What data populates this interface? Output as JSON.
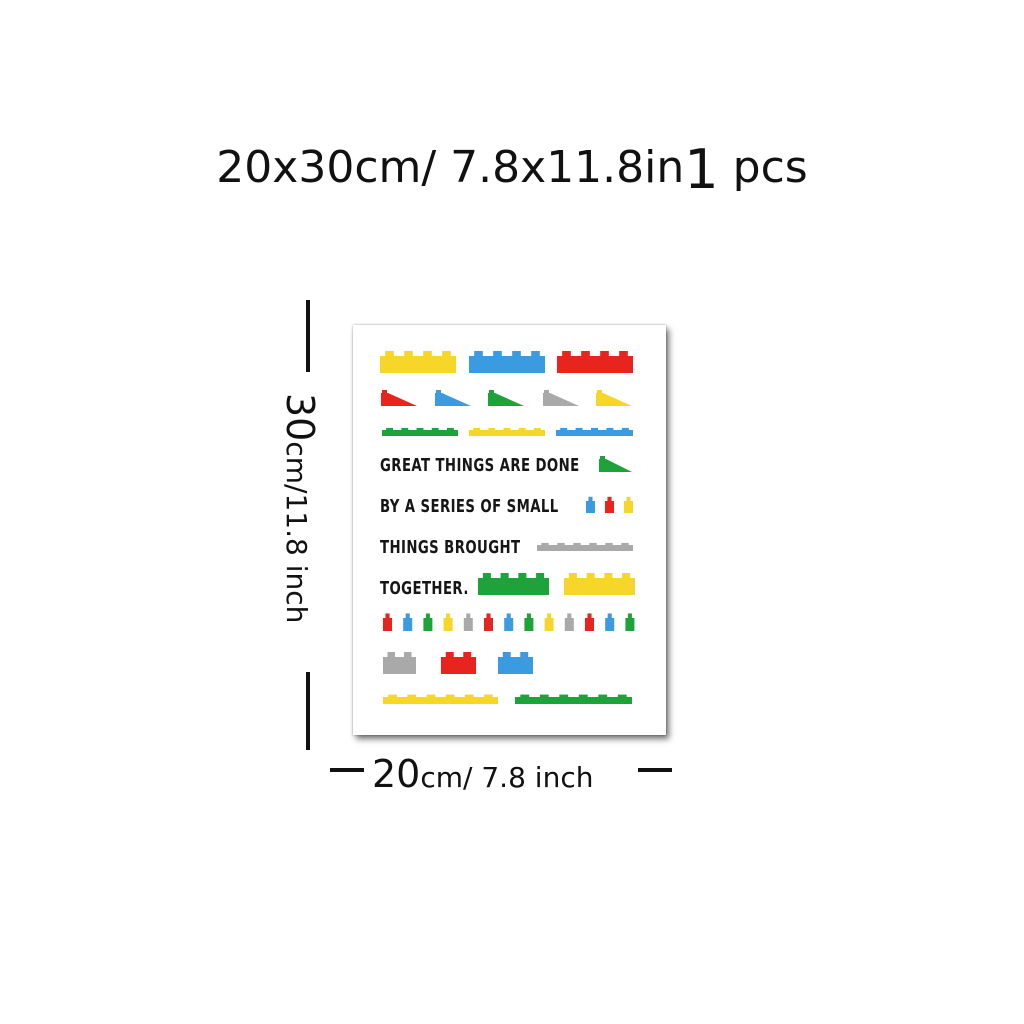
{
  "header": {
    "size_text": "20x30cm/ 7.8x11.8in",
    "quantity_number": "1",
    "quantity_unit": "pcs"
  },
  "poster": {
    "quote_lines": [
      "GREAT THINGS ARE DONE",
      "BY A SERIES OF SMALL",
      "THINGS BROUGHT",
      "TOGETHER."
    ],
    "brick_colors": {
      "yellow": "#f7d62a",
      "blue": "#3a9be0",
      "red": "#e8241e",
      "green": "#1ea33a",
      "gray": "#a9a9a9"
    }
  },
  "dimensions": {
    "height_number": "30",
    "height_unit": "cm/11.8 inch",
    "width_number": "20",
    "width_unit": "cm/ 7.8 inch"
  }
}
